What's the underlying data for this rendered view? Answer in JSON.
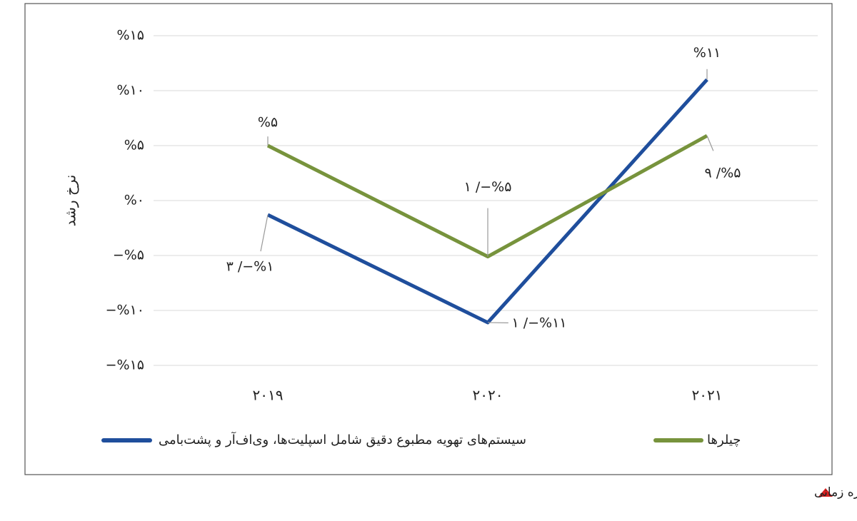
{
  "chart_data": {
    "type": "line",
    "y_axis_label": "نرخ رشد",
    "categories": [
      "۲۰۱۹",
      "۲۰۲۰",
      "۲۰۲۱"
    ],
    "series": [
      {
        "name": "سیستم‌های تهویه مطبوع دقیق شامل اسپلیت‌ها، وی‌اف‌آر و پشت‌بامی",
        "color": "#1f4e9c",
        "values": [
          -1.3,
          -11.1,
          11
        ],
        "value_labels": [
          "۳ /−%۱",
          "۱ /−%۱۱",
          "%۱۱"
        ]
      },
      {
        "name": "چیلرها",
        "color": "#77933c",
        "values": [
          5,
          -5.1,
          5.9
        ],
        "value_labels": [
          "%۵",
          "۱ /−%۵",
          "۹ /%۵"
        ]
      }
    ],
    "ylim": [
      -15,
      15
    ],
    "yticks": [
      {
        "value": 15,
        "label": "%۱۵"
      },
      {
        "value": 10,
        "label": "%۱۰"
      },
      {
        "value": 5,
        "label": "%۵"
      },
      {
        "value": 0,
        "label": "%۰"
      },
      {
        "value": -5,
        "label": "−%۵"
      },
      {
        "value": -10,
        "label": "−%۱۰"
      },
      {
        "value": -15,
        "label": "−%۱۵"
      }
    ],
    "grid": true,
    "caption": "نرخ رشد سیستم های تهویه مطبوع دقیق و چیلرها، بر اساس ارزش، بازه زمانی"
  }
}
